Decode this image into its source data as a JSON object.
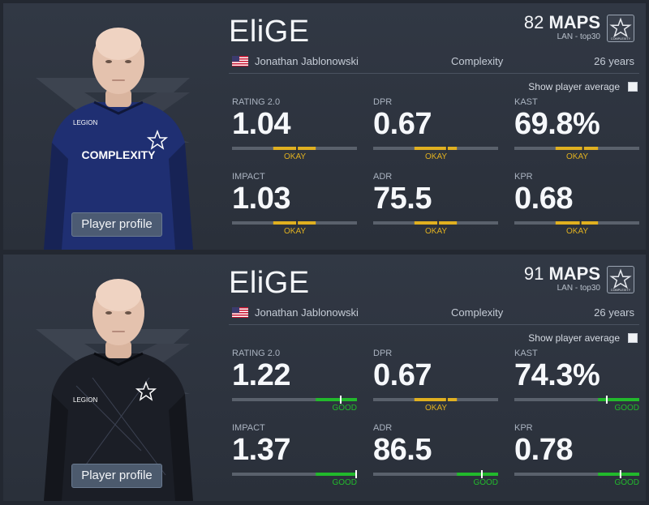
{
  "cards": [
    {
      "nickname": "EliGE",
      "maps_count": "82",
      "maps_word": "MAPS",
      "maps_filter": "LAN - top30",
      "real_name": "Jonathan Jablonowski",
      "team": "Complexity",
      "age": "26 years",
      "show_average_label": "Show player average",
      "profile_button": "Player profile",
      "jersey_color": "#1f2f72",
      "stats": [
        {
          "label": "RATING 2.0",
          "value": "1.04",
          "rating": "OKAY",
          "level": 0.52
        },
        {
          "label": "DPR",
          "value": "0.67",
          "rating": "OKAY",
          "level": 0.59
        },
        {
          "label": "KAST",
          "value": "69.8%",
          "rating": "OKAY",
          "level": 0.55
        },
        {
          "label": "IMPACT",
          "value": "1.03",
          "rating": "OKAY",
          "level": 0.52
        },
        {
          "label": "ADR",
          "value": "75.5",
          "rating": "OKAY",
          "level": 0.52
        },
        {
          "label": "KPR",
          "value": "0.68",
          "rating": "OKAY",
          "level": 0.53
        }
      ]
    },
    {
      "nickname": "EliGE",
      "maps_count": "91",
      "maps_word": "MAPS",
      "maps_filter": "LAN - top30",
      "real_name": "Jonathan Jablonowski",
      "team": "Complexity",
      "age": "26 years",
      "show_average_label": "Show player average",
      "profile_button": "Player profile",
      "jersey_color": "#1b1e26",
      "stats": [
        {
          "label": "RATING 2.0",
          "value": "1.22",
          "rating": "GOOD",
          "level": 0.87
        },
        {
          "label": "DPR",
          "value": "0.67",
          "rating": "OKAY",
          "level": 0.59
        },
        {
          "label": "KAST",
          "value": "74.3%",
          "rating": "GOOD",
          "level": 0.74
        },
        {
          "label": "IMPACT",
          "value": "1.37",
          "rating": "GOOD",
          "level": 1.0
        },
        {
          "label": "ADR",
          "value": "86.5",
          "rating": "GOOD",
          "level": 0.87
        },
        {
          "label": "KPR",
          "value": "0.78",
          "rating": "GOOD",
          "level": 0.85
        }
      ]
    }
  ],
  "colors": {
    "okay": "#e0b020",
    "good": "#22b92c",
    "track": "#5a616c",
    "flag_red": "#c8102e",
    "flag_blue": "#3c3b6e"
  }
}
